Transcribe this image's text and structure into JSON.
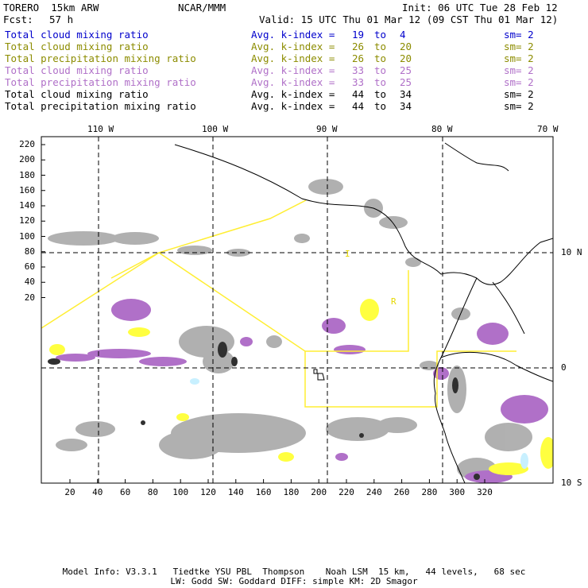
{
  "header": {
    "model": "TORERO  15km ARW",
    "org": "NCAR/MMM",
    "init": "Init: 06 UTC Tue 28 Feb 12",
    "fcst_label": "Fcst:",
    "fcst_value": "57 h",
    "valid": "Valid: 15 UTC Thu 01 Mar 12 (09 CST Thu 01 Mar 12)"
  },
  "legend": [
    {
      "field": "Total cloud mixing ratio",
      "index_label": "Avg. k-index =",
      "from": "19",
      "to_word": "to",
      "to": "4",
      "sm": "sm= 2",
      "color": "#0000cc"
    },
    {
      "field": "Total cloud mixing ratio",
      "index_label": "Avg. k-index =",
      "from": "26",
      "to_word": "to",
      "to": "20",
      "sm": "sm= 2",
      "color": "#8c8c00"
    },
    {
      "field": "Total precipitation mixing ratio",
      "index_label": "Avg. k-index =",
      "from": "26",
      "to_word": "to",
      "to": "20",
      "sm": "sm= 2",
      "color": "#8c8c00"
    },
    {
      "field": "Total cloud mixing ratio",
      "index_label": "Avg. k-index =",
      "from": "33",
      "to_word": "to",
      "to": "25",
      "sm": "sm= 2",
      "color": "#b070c8"
    },
    {
      "field": "Total precipitation mixing ratio",
      "index_label": "Avg. k-index =",
      "from": "33",
      "to_word": "to",
      "to": "25",
      "sm": "sm= 2",
      "color": "#b070c8"
    },
    {
      "field": "Total cloud mixing ratio",
      "index_label": "Avg. k-index =",
      "from": "44",
      "to_word": "to",
      "to": "34",
      "sm": "sm= 2",
      "color": "#000000"
    },
    {
      "field": "Total precipitation mixing ratio",
      "index_label": "Avg. k-index =",
      "from": "44",
      "to_word": "to",
      "to": "34",
      "sm": "sm= 2",
      "color": "#000000"
    }
  ],
  "map": {
    "lon_labels": [
      "110 W",
      "100 W",
      "90 W",
      "80 W",
      "70 W"
    ],
    "lat_labels": [
      "10 N",
      "0",
      "10 S"
    ],
    "y_ticks": [
      "220",
      "200",
      "180",
      "160",
      "140",
      "120",
      "100",
      "80",
      "60",
      "40",
      "20"
    ],
    "x_ticks": [
      "20",
      "40",
      "60",
      "80",
      "100",
      "120",
      "140",
      "160",
      "180",
      "200",
      "220",
      "240",
      "260",
      "280",
      "300",
      "320"
    ],
    "region_markers": [
      "I",
      "R"
    ],
    "colors": {
      "cloud_gray": "#a8a8a8",
      "dark_core": "#303030",
      "purple": "#b070c8",
      "yellow": "#ffff40",
      "cyan": "#c8f0ff",
      "boundary": "#ffee33",
      "coast": "#000000",
      "grid": "#000000"
    }
  },
  "footer": {
    "line1": "Model Info: V3.3.1   Tiedtke YSU PBL  Thompson    Noah LSM  15 km,   44 levels,   68 sec",
    "line2": "LW: Godd SW: Goddard DIFF: simple KM: 2D Smagor"
  }
}
